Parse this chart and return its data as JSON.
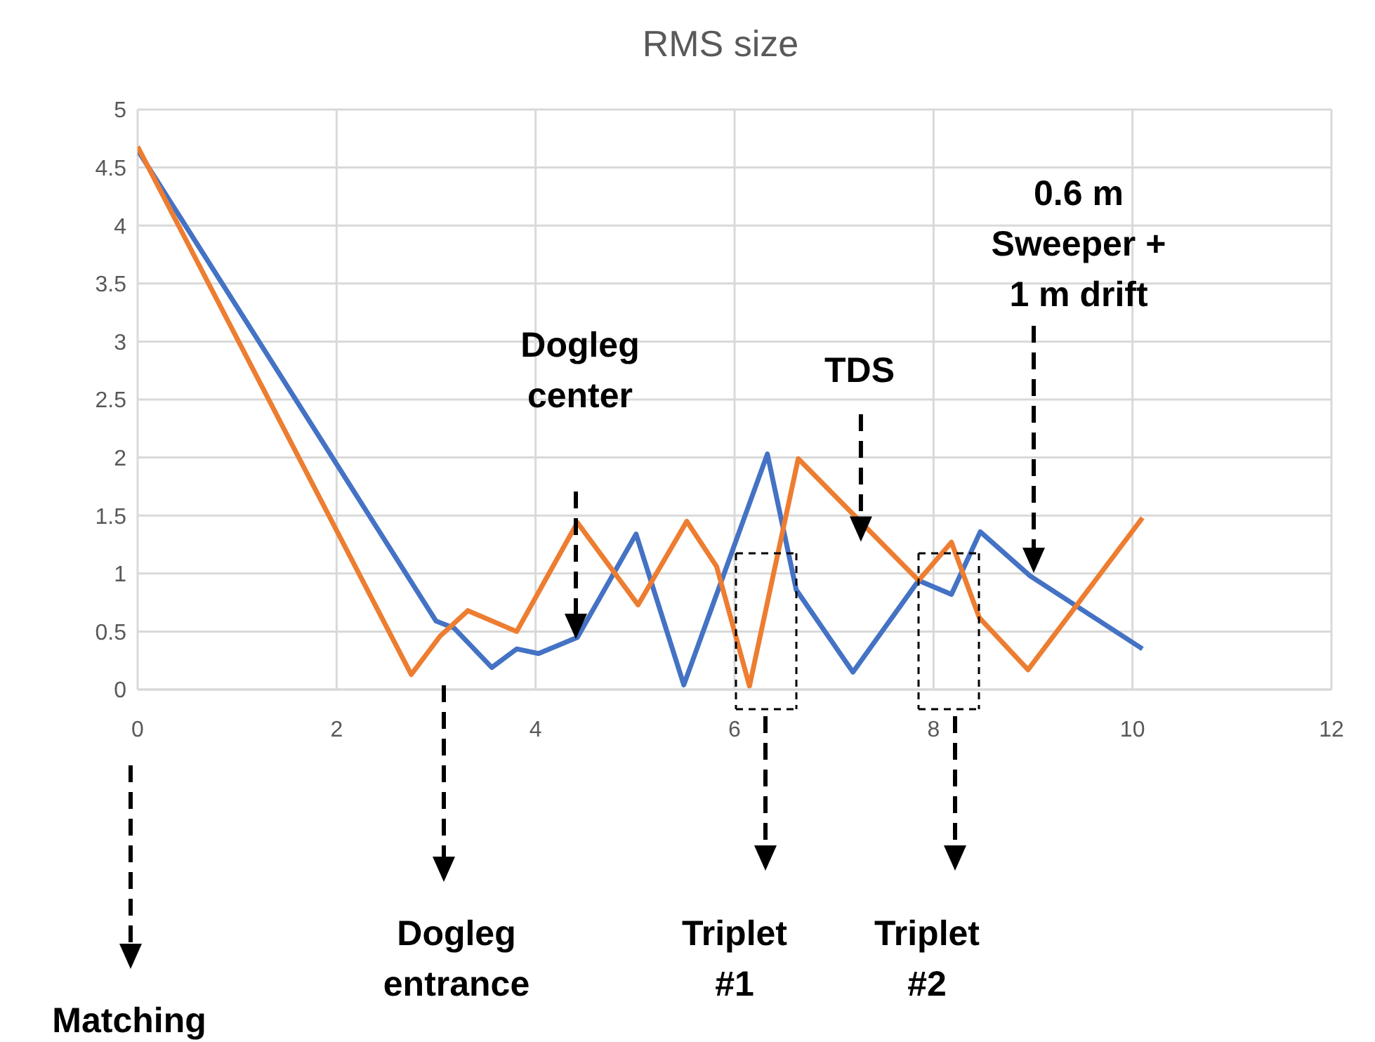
{
  "chart_data": {
    "type": "line",
    "title": "RMS size",
    "xlim": [
      0,
      12
    ],
    "xticks": [
      0,
      2,
      4,
      6,
      8,
      10,
      12
    ],
    "ylim": [
      0,
      5
    ],
    "yticks": [
      0,
      0.5,
      1,
      1.5,
      2,
      2.5,
      3,
      3.5,
      4,
      4.5,
      5
    ],
    "grid": true,
    "series": [
      {
        "color": "#4472c4",
        "x": [
          0,
          3.0,
          3.18,
          3.56,
          3.81,
          4.03,
          4.42,
          5.01,
          5.49,
          6.33,
          6.62,
          7.19,
          7.85,
          8.18,
          8.47,
          8.97,
          10.1
        ],
        "values": [
          4.65,
          0.59,
          0.53,
          0.19,
          0.35,
          0.31,
          0.45,
          1.34,
          0.04,
          2.03,
          0.86,
          0.15,
          0.94,
          0.82,
          1.36,
          0.98,
          0.35
        ]
      },
      {
        "color": "#ed7d31",
        "x": [
          0,
          2.75,
          3.04,
          3.32,
          3.81,
          4.42,
          5.03,
          5.52,
          5.82,
          6.15,
          6.64,
          7.85,
          8.18,
          8.46,
          8.95,
          10.1
        ],
        "values": [
          4.68,
          0.13,
          0.46,
          0.68,
          0.5,
          1.44,
          0.73,
          1.45,
          1.06,
          0.03,
          1.99,
          0.94,
          1.27,
          0.62,
          0.17,
          1.48
        ]
      }
    ],
    "annotations": [
      "Dogleg\ncenter",
      {
        "text": "TDS",
        "x": 7.27,
        "y": 1.42
      },
      "0.6 m\nSweeper +\n1 m drift",
      "Matching",
      "Dogleg\nentrance",
      "Triplet\n#1",
      "Triplet\n#2"
    ]
  }
}
